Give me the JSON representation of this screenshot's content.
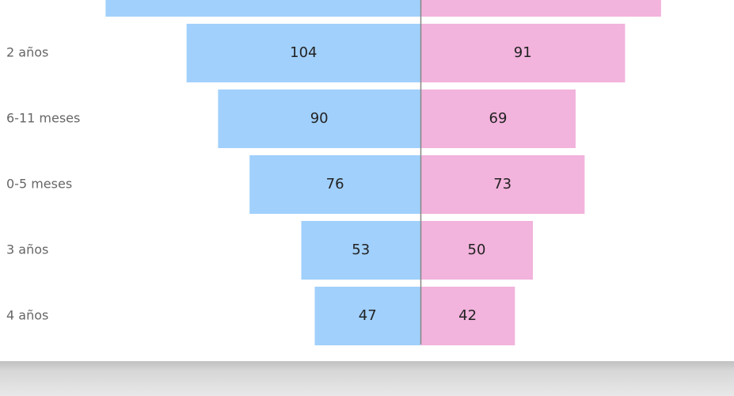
{
  "chart_data": {
    "type": "bar",
    "orientation": "horizontal",
    "categories": [
      null,
      "2 años",
      "6-11 meses",
      "0-5 meses",
      "3 años",
      "4 años"
    ],
    "series": [
      {
        "color": "#a1d0fc",
        "values": [
          140,
          104,
          90,
          76,
          53,
          47
        ]
      },
      {
        "color": "#f2b3dc",
        "values": [
          107,
          91,
          69,
          73,
          50,
          42
        ]
      }
    ]
  }
}
